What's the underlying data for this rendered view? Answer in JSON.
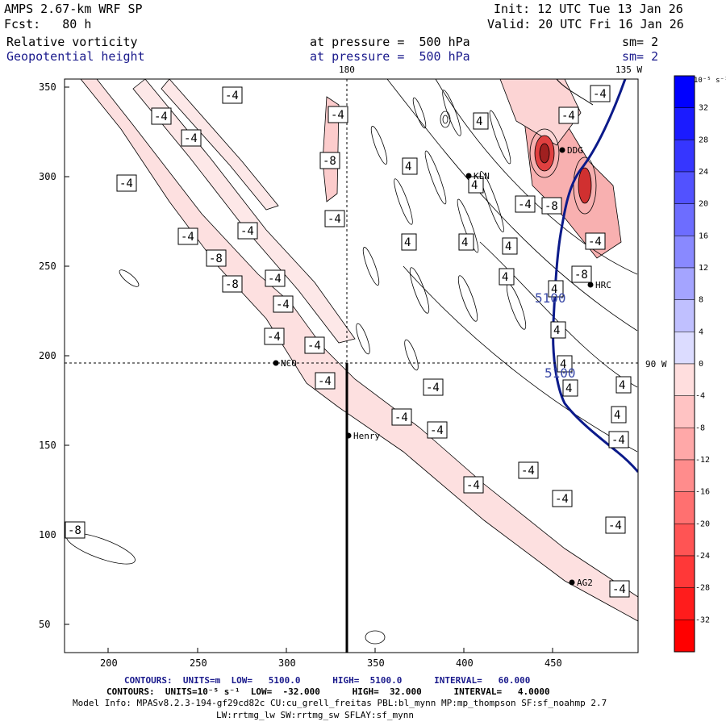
{
  "header": {
    "model": "AMPS 2.67-km WRF SP",
    "forecast": "Fcst:   80 h",
    "init": "Init: 12 UTC Tue 13 Jan 26",
    "valid": "Valid: 20 UTC Fri 16 Jan 26",
    "field1": "Relative vorticity",
    "field1_level": "at pressure =  500 hPa",
    "field1_sm": "sm= 2",
    "field2": "Geopotential height",
    "field2_level": "at pressure =  500 hPa",
    "field2_sm": "sm= 2"
  },
  "map": {
    "top_labels": [
      "180",
      "135 W"
    ],
    "right_label": "90 W",
    "x_ticks": [
      "200",
      "250",
      "300",
      "350",
      "400",
      "450"
    ],
    "y_ticks": [
      "350",
      "300",
      "250",
      "200",
      "150",
      "100",
      "50"
    ],
    "stations": [
      "NCO",
      "Henry",
      "KLN",
      "DDG",
      "HRC",
      "AG2"
    ],
    "height_contour_labels": [
      "5100",
      "5100"
    ],
    "vorticity_labels": [
      "-4",
      "-4",
      "-4",
      "-4",
      "-4",
      "-8",
      "-4",
      "-4",
      "-4",
      "-8",
      "-8",
      "-4",
      "-4",
      "-4",
      "-4",
      "-4",
      "-4",
      "-4",
      "-4",
      "-4",
      "-4",
      "-4",
      "-4",
      "-4",
      "-4",
      "-4",
      "-8",
      "-4",
      "4",
      "4",
      "4",
      "4",
      "4",
      "4",
      "4",
      "4",
      "4",
      "4",
      "4",
      "4",
      "4",
      "-4",
      "-8",
      "-4",
      "-8"
    ]
  },
  "colorbar": {
    "units": "10⁻⁵ s⁻¹",
    "labels": [
      "32",
      "28",
      "24",
      "20",
      "16",
      "12",
      "8",
      "4",
      "0",
      "-4",
      "-8",
      "-12",
      "-16",
      "-20",
      "-24",
      "-28",
      "-32"
    ],
    "colors": [
      "#0000ff",
      "#1b1bff",
      "#3636ff",
      "#5252ff",
      "#6d6dff",
      "#8989ff",
      "#a4a4ff",
      "#c0c0ff",
      "#dcdcff",
      "#ffdede",
      "#ffc3c3",
      "#ffa8a8",
      "#ff8c8c",
      "#ff7070",
      "#ff5454",
      "#ff3838",
      "#ff1c1c",
      "#ff0000"
    ]
  },
  "footer": {
    "line1": "CONTOURS:  UNITS=m  LOW=   5100.0      HIGH=  5100.0      INTERVAL=   60.000",
    "line2": "CONTOURS:  UNITS=10⁻⁵ s⁻¹  LOW=  -32.000      HIGH=  32.000      INTERVAL=   4.0000",
    "line3": "Model Info: MPASv8.2.3-194-gf29cd82c CU:cu_grell_freitas PBL:bl_mynn MP:mp_thompson SF:sf_noahmp 2.7",
    "line4": "LW:rrtmg_lw SW:rrtmg_sw SFLAY:sf_mynn"
  }
}
